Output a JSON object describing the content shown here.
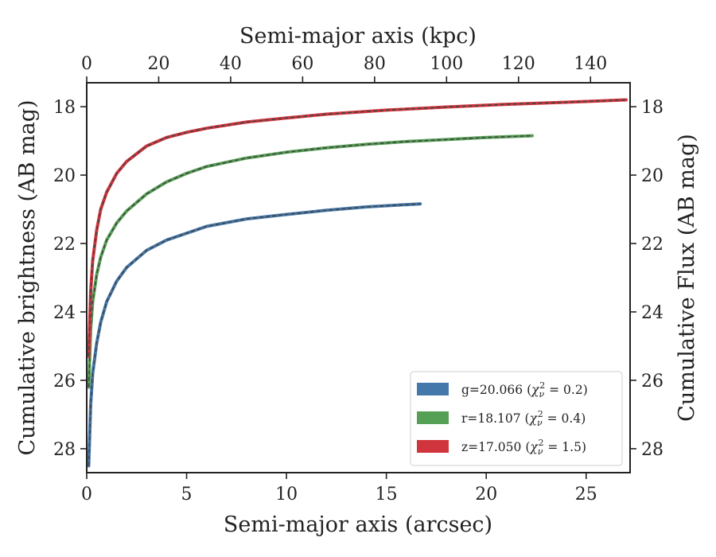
{
  "chart_data": {
    "type": "line",
    "title": "",
    "xlabel": "Semi-major axis (arcsec)",
    "x2label": "Semi-major axis (kpc)",
    "ylabel": "Cumulative brightness (AB mag)",
    "y2label": "Cumulative Flux (AB mag)",
    "xlim": [
      0,
      27.2
    ],
    "x2lim": [
      0,
      151
    ],
    "ylim": [
      28.7,
      17.3
    ],
    "y_inverted": true,
    "xticks": [
      0,
      5,
      10,
      15,
      20,
      25
    ],
    "x2ticks": [
      0,
      20,
      40,
      60,
      80,
      100,
      120,
      140
    ],
    "yticks": [
      18,
      20,
      22,
      24,
      26,
      28
    ],
    "grid": false,
    "legend_position": "lower-right",
    "series": [
      {
        "name": "g=20.066",
        "chi2": "0.2",
        "color": "#4477aa",
        "x": [
          0.1,
          0.2,
          0.3,
          0.5,
          0.7,
          1.0,
          1.5,
          2.0,
          3.0,
          4.0,
          5.0,
          6.0,
          8.0,
          10.0,
          12.0,
          14.0,
          16.7
        ],
        "y": [
          28.5,
          26.7,
          25.8,
          24.9,
          24.3,
          23.7,
          23.1,
          22.7,
          22.2,
          21.9,
          21.7,
          21.5,
          21.28,
          21.15,
          21.03,
          20.93,
          20.84
        ]
      },
      {
        "name": "r=18.107",
        "chi2": "0.4",
        "color": "#55a054",
        "x": [
          0.1,
          0.2,
          0.3,
          0.5,
          0.7,
          1.0,
          1.5,
          2.0,
          3.0,
          4.0,
          5.0,
          6.0,
          8.0,
          10.0,
          12.0,
          14.0,
          16.0,
          18.0,
          20.0,
          22.3
        ],
        "y": [
          26.2,
          24.5,
          23.7,
          22.9,
          22.4,
          21.9,
          21.4,
          21.05,
          20.55,
          20.2,
          19.95,
          19.75,
          19.5,
          19.33,
          19.2,
          19.1,
          19.02,
          18.96,
          18.9,
          18.85
        ]
      },
      {
        "name": "z=17.050",
        "chi2": "1.5",
        "color": "#d0343c",
        "x": [
          0.1,
          0.2,
          0.3,
          0.5,
          0.7,
          1.0,
          1.5,
          2.0,
          3.0,
          4.0,
          5.0,
          6.0,
          8.0,
          10.0,
          12.0,
          15.0,
          18.0,
          21.0,
          24.0,
          27.0
        ],
        "y": [
          25.3,
          23.4,
          22.5,
          21.6,
          21.0,
          20.5,
          19.95,
          19.6,
          19.15,
          18.9,
          18.75,
          18.63,
          18.45,
          18.33,
          18.22,
          18.1,
          18.01,
          17.93,
          17.87,
          17.8
        ]
      }
    ]
  }
}
